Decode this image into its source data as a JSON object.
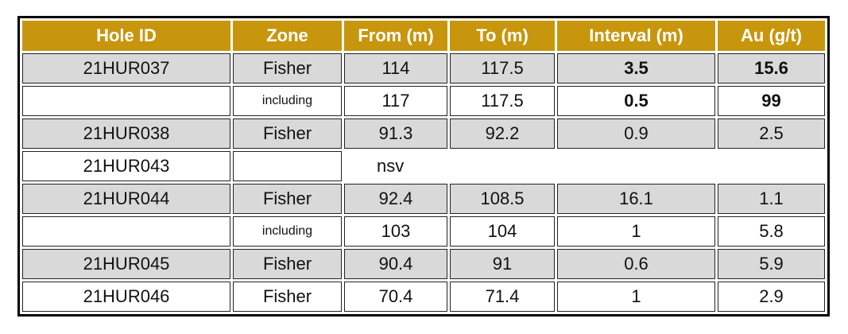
{
  "table": {
    "header": [
      "Hole ID",
      "Zone",
      "From (m)",
      "To (m)",
      "Interval (m)",
      "Au (g/t)"
    ],
    "rows": [
      {
        "cells": [
          "21HUR037",
          "Fisher",
          "114",
          "117.5",
          "3.5",
          "15.6"
        ],
        "shaded": true,
        "bold_from": 4
      },
      {
        "cells": [
          null,
          "including",
          "117",
          "117.5",
          "0.5",
          "99"
        ],
        "shaded": false,
        "bold_from": 4
      },
      {
        "cells": [
          "21HUR038",
          "Fisher",
          "91.3",
          "92.2",
          "0.9",
          "2.5"
        ],
        "shaded": true
      },
      {
        "cells": [
          "21HUR043",
          null,
          "nsv"
        ],
        "shaded": false
      },
      {
        "cells": [
          "21HUR044",
          "Fisher",
          "92.4",
          "108.5",
          "16.1",
          "1.1"
        ],
        "shaded": true
      },
      {
        "cells": [
          null,
          "including",
          "103",
          "104",
          "1",
          "5.8"
        ],
        "shaded": false
      },
      {
        "cells": [
          "21HUR045",
          "Fisher",
          "90.4",
          "91",
          "0.6",
          "5.9"
        ],
        "shaded": true
      },
      {
        "cells": [
          "21HUR046",
          "Fisher",
          "70.4",
          "71.4",
          "1",
          "2.9"
        ],
        "shaded": false
      }
    ]
  }
}
